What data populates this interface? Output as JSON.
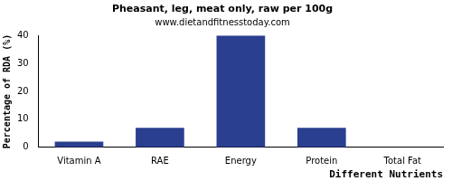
{
  "chart_data": {
    "type": "bar",
    "title": "Pheasant, leg, meat only, raw per 100g",
    "subtitle": "www.dietandfitnesstoday.com",
    "x_label": "Different Nutrients",
    "y_label": "Percentage of RDA (%)",
    "categories": [
      "Vitamin A",
      "RAE",
      "Energy",
      "Protein",
      "Total Fat"
    ],
    "values": [
      2,
      7,
      40,
      7,
      0
    ],
    "color": "#2a3f8f",
    "ylim": [
      0,
      40
    ],
    "yticks": [
      0,
      10,
      20,
      30,
      40
    ],
    "grid": false
  }
}
